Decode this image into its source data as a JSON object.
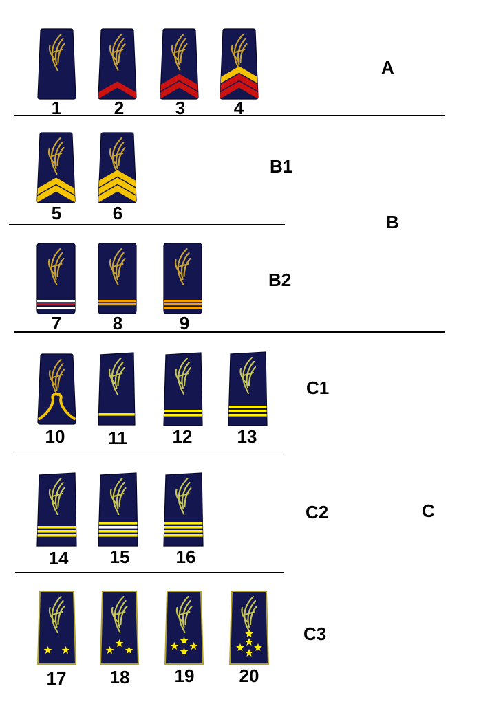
{
  "colors": {
    "board": "#14164f",
    "board_outline": "#05062a",
    "emblem": "#c8a230",
    "emblem_light": "#c6c552",
    "red": "#cc1111",
    "gold": "#f5c400",
    "yellow": "#ffee00",
    "orange": "#f3a000",
    "white": "#ffffff",
    "star": "#ffee00",
    "board_border_gold": "#b3a22a"
  },
  "groups": {
    "a": "A",
    "b": "B",
    "b1": "B1",
    "b2": "B2",
    "c": "C",
    "c1": "C1",
    "c2": "C2",
    "c3": "C3"
  },
  "insignia": [
    {
      "number": "1",
      "kind": "chevrons",
      "chevrons": []
    },
    {
      "number": "2",
      "kind": "chevrons",
      "chevrons": [
        "red"
      ]
    },
    {
      "number": "3",
      "kind": "chevrons",
      "chevrons": [
        "red",
        "red"
      ]
    },
    {
      "number": "4",
      "kind": "chevrons",
      "chevrons": [
        "red",
        "red",
        "gold"
      ]
    },
    {
      "number": "5",
      "kind": "chevrons",
      "chevrons": [
        "gold",
        "gold"
      ]
    },
    {
      "number": "6",
      "kind": "chevrons",
      "chevrons": [
        "gold",
        "gold",
        "gold"
      ]
    },
    {
      "number": "7",
      "kind": "bars",
      "bars": [
        "white",
        "red",
        "white"
      ]
    },
    {
      "number": "8",
      "kind": "bars",
      "bars": [
        "orange",
        "orange"
      ]
    },
    {
      "number": "9",
      "kind": "bars",
      "bars": [
        "orange",
        "orange",
        "orange"
      ]
    },
    {
      "number": "10",
      "kind": "knot"
    },
    {
      "number": "11",
      "kind": "stripes",
      "stripes": [
        "yellow"
      ]
    },
    {
      "number": "12",
      "kind": "stripes",
      "stripes": [
        "yellow",
        "yellow"
      ]
    },
    {
      "number": "13",
      "kind": "stripes",
      "stripes": [
        "yellow",
        "yellow",
        "yellow"
      ]
    },
    {
      "number": "14",
      "kind": "stripes",
      "stripes": [
        "yellow",
        "yellow",
        "yellow"
      ]
    },
    {
      "number": "15",
      "kind": "stripes",
      "stripes": [
        "yellow",
        "white",
        "yellow",
        "yellow"
      ]
    },
    {
      "number": "16",
      "kind": "stripes",
      "stripes": [
        "yellow",
        "yellow",
        "yellow",
        "yellow"
      ]
    },
    {
      "number": "17",
      "kind": "stars",
      "stars": 2
    },
    {
      "number": "18",
      "kind": "stars",
      "stars": 3
    },
    {
      "number": "19",
      "kind": "stars",
      "stars": 4
    },
    {
      "number": "20",
      "kind": "stars",
      "stars": 5
    }
  ]
}
